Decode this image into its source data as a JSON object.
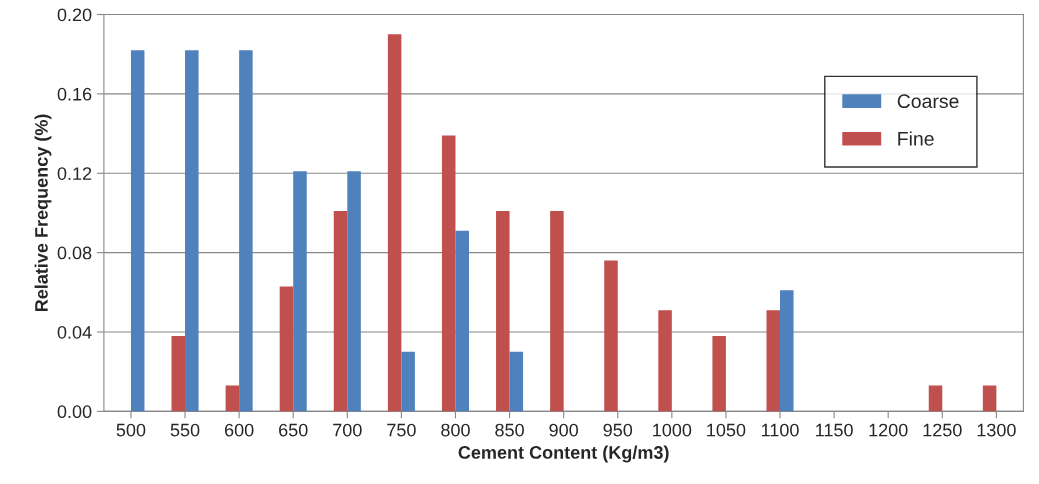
{
  "chart_data": {
    "type": "bar",
    "xlabel": "Cement Content (Kg/m3)",
    "ylabel": "Relative Frequency (%)",
    "categories": [
      "500",
      "550",
      "600",
      "650",
      "700",
      "750",
      "800",
      "850",
      "900",
      "950",
      "1000",
      "1050",
      "1100",
      "1150",
      "1200",
      "1250",
      "1300"
    ],
    "series": [
      {
        "name": "Coarse",
        "color": "#4f81bd",
        "values": [
          0.182,
          0.182,
          0.182,
          0.121,
          0.121,
          0.03,
          0.091,
          0.03,
          0,
          0,
          0,
          0,
          0.061,
          0,
          0,
          0,
          0
        ]
      },
      {
        "name": "Fine",
        "color": "#c0504d",
        "values": [
          0,
          0.038,
          0.013,
          0.063,
          0.101,
          0.19,
          0.139,
          0.101,
          0.101,
          0.076,
          0.051,
          0.038,
          0.051,
          0,
          0,
          0.013,
          0.013
        ]
      }
    ],
    "ylim": [
      0,
      0.2
    ],
    "yticks": [
      {
        "value": 0,
        "label": "0.00"
      },
      {
        "value": 0.04,
        "label": "0.04"
      },
      {
        "value": 0.08,
        "label": "0.08"
      },
      {
        "value": 0.12,
        "label": "0.12"
      },
      {
        "value": 0.16,
        "label": "0.16"
      },
      {
        "value": 0.2,
        "label": "0.20"
      }
    ],
    "grid": "y",
    "legend": "right"
  }
}
